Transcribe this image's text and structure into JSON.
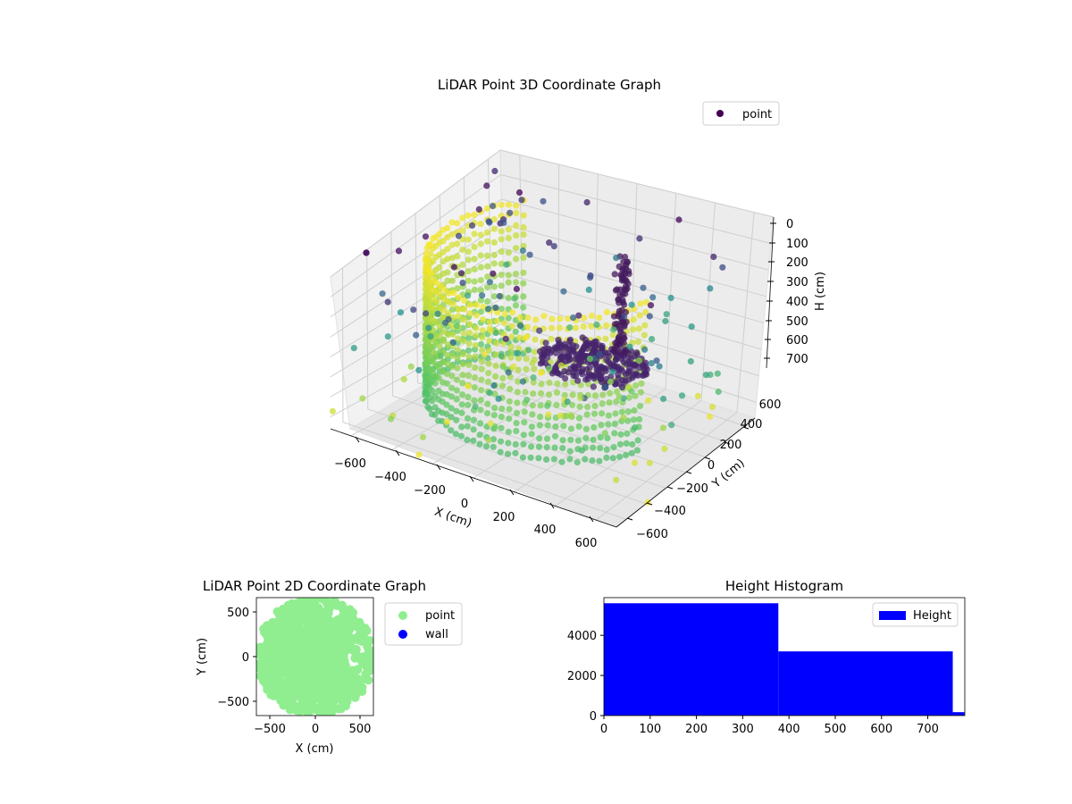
{
  "chart_data": [
    {
      "type": "scatter",
      "projection": "3d",
      "title": "LiDAR Point 3D Coordinate Graph",
      "xlabel": "X (cm)",
      "ylabel": "Y (cm)",
      "zlabel": "H (cm)",
      "xlim": [
        -700,
        700
      ],
      "ylim": [
        -700,
        700
      ],
      "zlim": [
        760,
        0
      ],
      "zaxis_inverted": true,
      "x_ticks": [
        "−600",
        "−400",
        "−200",
        "0",
        "200",
        "400",
        "600"
      ],
      "y_ticks": [
        "−600",
        "−400",
        "−200",
        "0",
        "200",
        "400",
        "600"
      ],
      "z_ticks": [
        "0",
        "100",
        "200",
        "300",
        "400",
        "500",
        "600",
        "700"
      ],
      "colormap": "viridis (colored by height)",
      "legend": {
        "entries": [
          "point"
        ],
        "placement": "top-right",
        "marker_color": "#440154"
      },
      "grid": true,
      "description_of_data": "curved wall of points (radius ~600 cm) spanning heights ~0-700 cm, a central elliptical floor patch near H~500, plus sparse scattered outliers"
    },
    {
      "type": "scatter",
      "title": "LiDAR Point 2D Coordinate Graph",
      "xlabel": "X (cm)",
      "ylabel": "Y (cm)",
      "xlim": [
        -650,
        650
      ],
      "ylim": [
        -650,
        650
      ],
      "x_ticks": [
        "−500",
        "0",
        "500"
      ],
      "y_ticks": [
        "−500",
        "0",
        "500"
      ],
      "series": [
        {
          "name": "point",
          "color": "#90ee90"
        },
        {
          "name": "wall",
          "color": "#0000ff"
        }
      ],
      "legend": {
        "placement": "outside-right-top"
      }
    },
    {
      "type": "bar",
      "title": "Height Histogram",
      "xlabel": "",
      "ylabel": "",
      "bins": [
        {
          "x0": 0,
          "x1": 377,
          "count": 5600
        },
        {
          "x0": 377,
          "x1": 754,
          "count": 3200
        },
        {
          "x0": 754,
          "x1": 779,
          "count": 170
        }
      ],
      "xlim": [
        0,
        780
      ],
      "ylim": [
        0,
        5880
      ],
      "x_ticks": [
        "0",
        "100",
        "200",
        "300",
        "400",
        "500",
        "600",
        "700"
      ],
      "y_ticks": [
        "0",
        "2000",
        "4000"
      ],
      "color": "#0000ff",
      "legend": {
        "entries": [
          "Height"
        ],
        "placement": "top-right"
      }
    }
  ]
}
